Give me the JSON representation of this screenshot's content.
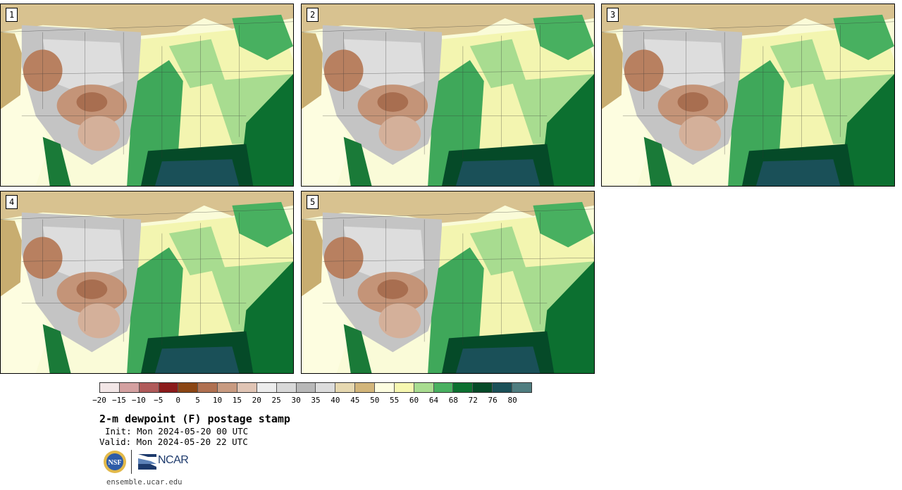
{
  "panels": [
    {
      "label": "1"
    },
    {
      "label": "2"
    },
    {
      "label": "3"
    },
    {
      "label": "4"
    },
    {
      "label": "5"
    }
  ],
  "colorbar": {
    "colors": [
      "#f2e6e6",
      "#d4a0a0",
      "#b05a5a",
      "#8b1a1a",
      "#8b4513",
      "#b07050",
      "#c89a80",
      "#e0c4b4",
      "#ececec",
      "#d8d8d8",
      "#b8b8b8",
      "#dcdcdc",
      "#e6d8b0",
      "#d2b57a",
      "#fdfde0",
      "#f6f7b0",
      "#a8dc90",
      "#48b060",
      "#0c7030",
      "#054a28",
      "#1a5058",
      "#4f7d80"
    ],
    "ticks": [
      "−20",
      "−15",
      "−10",
      "−5",
      "0",
      "5",
      "10",
      "15",
      "20",
      "25",
      "30",
      "35",
      "40",
      "45",
      "50",
      "55",
      "60",
      "64",
      "68",
      "72",
      "76",
      "80"
    ]
  },
  "title": "2-m dewpoint (F) postage stamp",
  "init": "Init: Mon 2024-05-20 00 UTC",
  "valid": "Valid: Mon 2024-05-20 22 UTC",
  "logos": {
    "nsf": "NSF",
    "ncar": "NCAR"
  },
  "url": "ensemble.ucar.edu"
}
